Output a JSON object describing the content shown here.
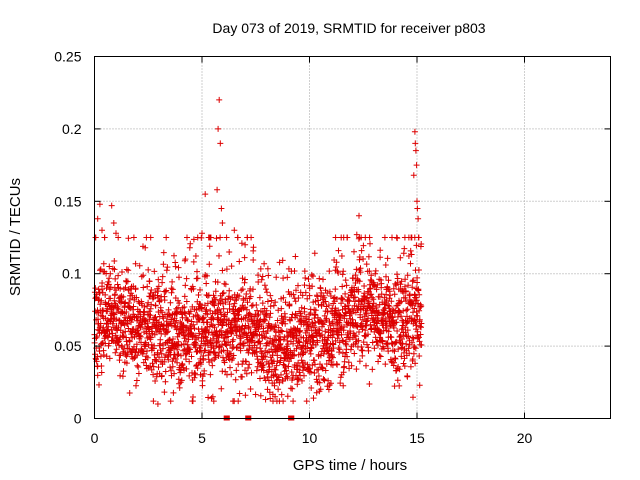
{
  "chart_data": {
    "type": "scatter",
    "title": "Day 073 of 2019, SRMTID for receiver p803",
    "xlabel": "GPS time / hours",
    "ylabel": "SRMTID / TECUs",
    "xlim": [
      0,
      24
    ],
    "ylim": [
      0,
      0.25
    ],
    "x_ticks": [
      0,
      5,
      10,
      15,
      20
    ],
    "x_tick_labels": [
      "0",
      "5",
      "10",
      "15",
      "20"
    ],
    "y_ticks": [
      0,
      0.05,
      0.1,
      0.15,
      0.2,
      0.25
    ],
    "y_tick_labels": [
      "0",
      "0.05",
      "0.1",
      "0.15",
      "0.2",
      "0.25"
    ],
    "grid": true,
    "marker": "+",
    "series_color": "#dd0000",
    "sample_interval_hours": 0.0125,
    "data_end_hour": 15.2,
    "baseline_level": [
      [
        0,
        0.068
      ],
      [
        1,
        0.066
      ],
      [
        2,
        0.063
      ],
      [
        3,
        0.058
      ],
      [
        4,
        0.052
      ],
      [
        5,
        0.055
      ],
      [
        6,
        0.06
      ],
      [
        7,
        0.062
      ],
      [
        7.5,
        0.055
      ],
      [
        8,
        0.05
      ],
      [
        9,
        0.048
      ],
      [
        10,
        0.055
      ],
      [
        11,
        0.06
      ],
      [
        12,
        0.07
      ],
      [
        13,
        0.072
      ],
      [
        14,
        0.065
      ],
      [
        15,
        0.065
      ],
      [
        15.2,
        0.07
      ]
    ],
    "notable_points": [
      {
        "x": 0.05,
        "y": 0.125
      },
      {
        "x": 0.15,
        "y": 0.138
      },
      {
        "x": 0.25,
        "y": 0.148
      },
      {
        "x": 0.35,
        "y": 0.13
      },
      {
        "x": 0.8,
        "y": 0.147
      },
      {
        "x": 0.9,
        "y": 0.135
      },
      {
        "x": 1.0,
        "y": 0.128
      },
      {
        "x": 5.0,
        "y": 0.128
      },
      {
        "x": 5.15,
        "y": 0.155
      },
      {
        "x": 5.7,
        "y": 0.158
      },
      {
        "x": 5.75,
        "y": 0.2
      },
      {
        "x": 5.8,
        "y": 0.22
      },
      {
        "x": 5.85,
        "y": 0.19
      },
      {
        "x": 5.9,
        "y": 0.145
      },
      {
        "x": 5.95,
        "y": 0.135
      },
      {
        "x": 6.5,
        "y": 0.13
      },
      {
        "x": 12.3,
        "y": 0.14
      },
      {
        "x": 12.2,
        "y": 0.127
      },
      {
        "x": 12.4,
        "y": 0.125
      },
      {
        "x": 14.85,
        "y": 0.168
      },
      {
        "x": 14.9,
        "y": 0.198
      },
      {
        "x": 14.92,
        "y": 0.19
      },
      {
        "x": 14.95,
        "y": 0.185
      },
      {
        "x": 14.98,
        "y": 0.175
      },
      {
        "x": 15.0,
        "y": 0.15
      },
      {
        "x": 15.02,
        "y": 0.145
      },
      {
        "x": 15.05,
        "y": 0.138
      },
      {
        "x": 2.95,
        "y": 0.01
      },
      {
        "x": 5.5,
        "y": 0.015
      },
      {
        "x": 5.55,
        "y": 0.012
      },
      {
        "x": 8.4,
        "y": 0.015
      },
      {
        "x": 10.9,
        "y": 0.02
      }
    ],
    "zero_markers_x": [
      6.1,
      6.2,
      7.1,
      7.2,
      9.1,
      9.2
    ]
  }
}
